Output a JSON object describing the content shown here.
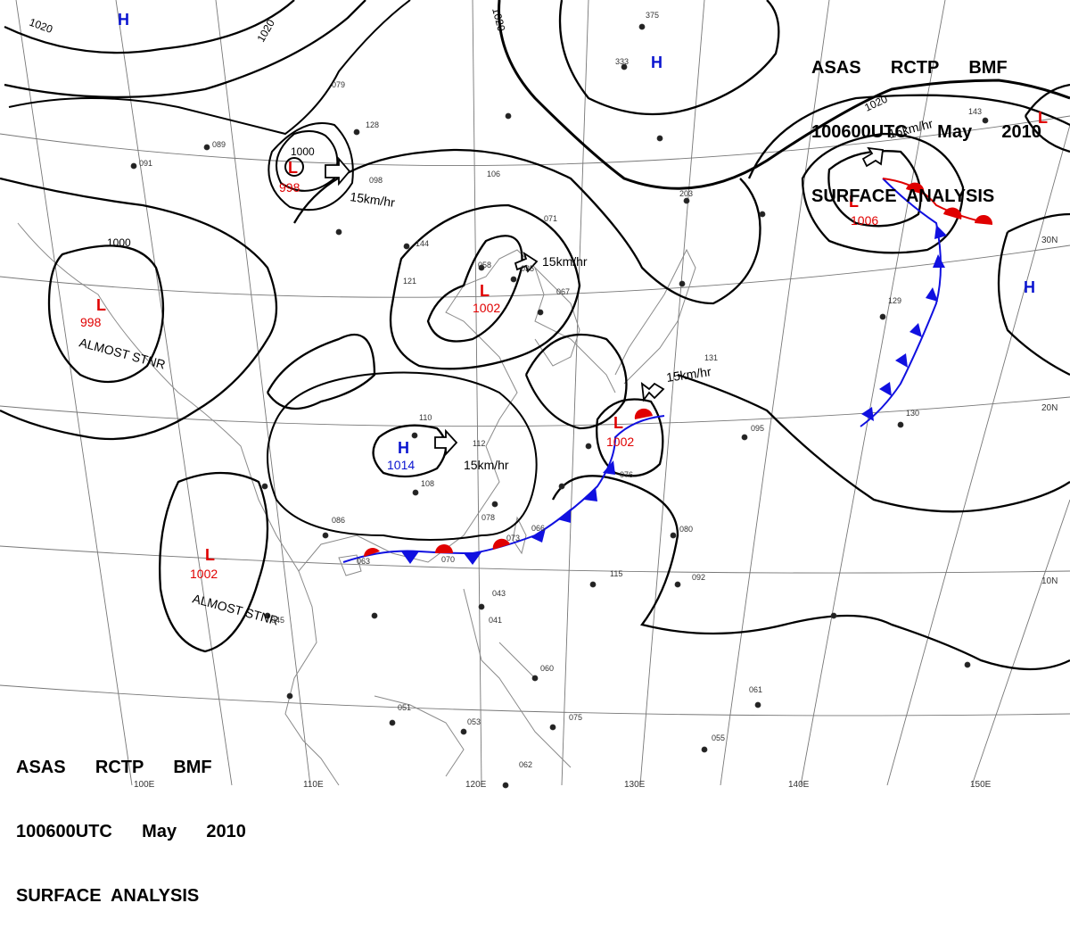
{
  "header": {
    "line1": "ASAS      RCTP      BMF",
    "line2": "100600UTC      May      2010",
    "line3": "SURFACE  ANALYSIS"
  },
  "colors": {
    "low": "#e00000",
    "high": "#0a14d0",
    "isobar": "#000000",
    "grid": "#777777",
    "coast": "#8a8a8a",
    "warm_front": "#e00000",
    "cold_front": "#1010e0"
  },
  "lon_labels": [
    "100E",
    "110E",
    "120E",
    "130E",
    "140E",
    "150E"
  ],
  "lat_labels": [
    "30N",
    "20N",
    "10N"
  ],
  "isobar_labels": [
    "1020",
    "1020",
    "1020",
    "1000",
    "1000",
    "1020"
  ],
  "systems": [
    {
      "kind": "L",
      "pressure": "998",
      "note": ""
    },
    {
      "kind": "L",
      "pressure": "998",
      "note": "ALMOST STNR"
    },
    {
      "kind": "L",
      "pressure": "1002",
      "note": ""
    },
    {
      "kind": "L",
      "pressure": "1002",
      "note": "ALMOST STNR"
    },
    {
      "kind": "L",
      "pressure": "1002",
      "note": ""
    },
    {
      "kind": "L",
      "pressure": "1006",
      "note": ""
    },
    {
      "kind": "L",
      "pressure": "",
      "note": ""
    },
    {
      "kind": "H",
      "pressure": "1014",
      "note": ""
    },
    {
      "kind": "H",
      "pressure": "",
      "note": ""
    },
    {
      "kind": "H",
      "pressure": "",
      "note": ""
    },
    {
      "kind": "H",
      "pressure": "",
      "note": ""
    }
  ],
  "motions": [
    "15km/hr",
    "15km/hr",
    "15km/hr",
    "15km/hr",
    "15km/hr"
  ],
  "stations": [
    "091",
    "089",
    "079",
    "128",
    "098",
    "106",
    "071",
    "058",
    "035",
    "067",
    "121",
    "144",
    "110",
    "112",
    "108",
    "086",
    "063",
    "070",
    "073",
    "078",
    "066",
    "076",
    "095",
    "080",
    "092",
    "115",
    "130",
    "062",
    "061",
    "043",
    "041",
    "045",
    "051",
    "053",
    "060",
    "075",
    "055",
    "131",
    "333",
    "375",
    "203",
    "129",
    "143"
  ]
}
